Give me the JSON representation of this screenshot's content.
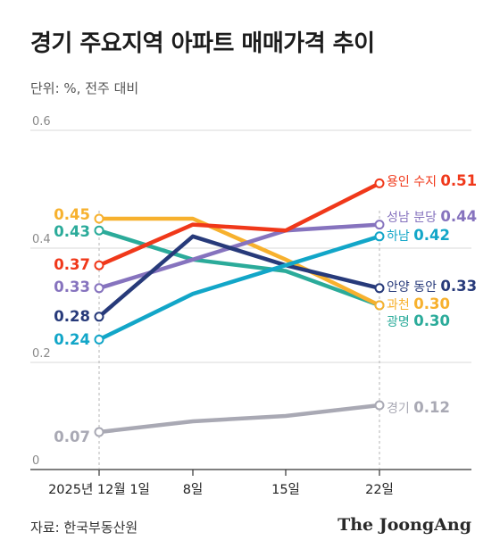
{
  "title": "경기 주요지역 아파트 매매가격 추이",
  "unit_label": "단위: %, 전주 대비",
  "source": "자료: 한국부동산원",
  "brand": "The JoongAng",
  "chart_data": {
    "type": "line",
    "x": [
      "2025년 12월 1일",
      "8일",
      "15일",
      "22일"
    ],
    "ylim": [
      0,
      0.6
    ],
    "yticks": [
      0,
      0.2,
      0.4,
      0.6
    ],
    "ytick_labels": [
      "0",
      "0.2",
      "0.4",
      "0.6"
    ],
    "grid": true,
    "series": [
      {
        "name": "경기",
        "values": [
          0.07,
          0.09,
          0.1,
          0.12
        ],
        "color": "#a9a9b4",
        "start_label": "0.07",
        "end_label": "0.12"
      },
      {
        "name": "광명",
        "values": [
          0.43,
          0.38,
          0.36,
          0.3
        ],
        "color": "#2bab9a",
        "start_label": "0.43",
        "end_label": "0.30"
      },
      {
        "name": "과천",
        "values": [
          0.45,
          0.45,
          0.38,
          0.3
        ],
        "color": "#f7b12e",
        "start_label": "0.45",
        "end_label": "0.30"
      },
      {
        "name": "성남 분당",
        "values": [
          0.33,
          0.38,
          0.43,
          0.44
        ],
        "color": "#8673be",
        "start_label": "0.33",
        "end_label": "0.44"
      },
      {
        "name": "안양 동안",
        "values": [
          0.28,
          0.42,
          0.37,
          0.33
        ],
        "color": "#273a7a",
        "start_label": "0.28",
        "end_label": "0.33"
      },
      {
        "name": "하남",
        "values": [
          0.24,
          0.32,
          0.37,
          0.42
        ],
        "color": "#12a6c8",
        "start_label": "0.24",
        "end_label": "0.42"
      },
      {
        "name": "용인 수지",
        "values": [
          0.37,
          0.44,
          0.43,
          0.51
        ],
        "color": "#f0381a",
        "start_label": "0.37",
        "end_label": "0.51"
      }
    ]
  }
}
